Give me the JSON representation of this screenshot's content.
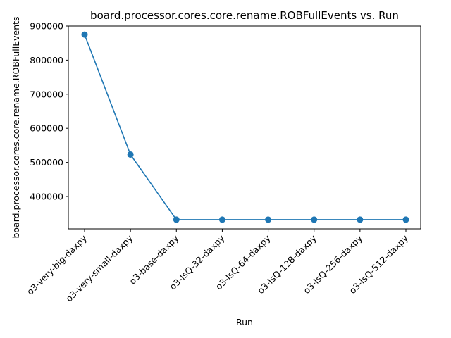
{
  "chart_data": {
    "type": "line",
    "title": "board.processor.cores.core.rename.ROBFullEvents vs. Run",
    "xlabel": "Run",
    "ylabel": "board.processor.cores.core.rename.ROBFullEvents",
    "categories": [
      "o3-very-big-daxpy",
      "o3-very-small-daxpy",
      "o3-base-daxpy",
      "o3-IsQ-32-daxpy",
      "o3-IsQ-64-daxpy",
      "o3-IsQ-128-daxpy",
      "o3-IsQ-256-daxpy",
      "o3-IsQ-512-daxpy"
    ],
    "series": [
      {
        "values": [
          875000,
          523000,
          332000,
          332000,
          332000,
          332000,
          332000,
          332000
        ]
      }
    ],
    "ylim": [
      305000,
      900000
    ],
    "yticks": [
      400000,
      500000,
      600000,
      700000,
      800000,
      900000
    ],
    "ytick_labels": [
      "400000",
      "500000",
      "600000",
      "700000",
      "800000",
      "900000"
    ],
    "grid": false,
    "line_color": "#1f77b4"
  }
}
